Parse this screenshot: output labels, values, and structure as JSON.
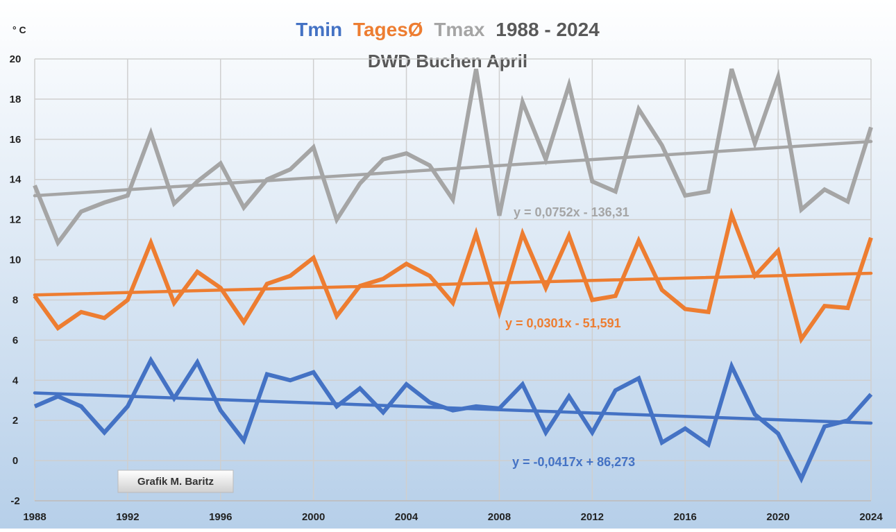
{
  "chart_data": {
    "type": "line",
    "title": "1988 - 2024",
    "subtitle": "DWD Buchen April",
    "y_label": "° C",
    "annotation": "Grafik M. Baritz",
    "x": [
      1988,
      1989,
      1990,
      1991,
      1992,
      1993,
      1994,
      1995,
      1996,
      1997,
      1998,
      1999,
      2000,
      2001,
      2002,
      2003,
      2004,
      2005,
      2006,
      2007,
      2008,
      2009,
      2010,
      2011,
      2012,
      2013,
      2014,
      2015,
      2016,
      2017,
      2018,
      2019,
      2020,
      2021,
      2022,
      2023,
      2024
    ],
    "xlim": [
      1988,
      2024
    ],
    "xticks": [
      1988,
      1992,
      1996,
      2000,
      2004,
      2008,
      2012,
      2016,
      2020,
      2024
    ],
    "ylim": [
      -2,
      20
    ],
    "yticks": [
      -2,
      0,
      2,
      4,
      6,
      8,
      10,
      12,
      14,
      16,
      18,
      20
    ],
    "grid": true,
    "series": [
      {
        "name": "Tmin",
        "color": "#4472c4",
        "values": [
          2.7,
          3.2,
          2.7,
          1.4,
          2.7,
          5.0,
          3.1,
          4.9,
          2.5,
          1.0,
          4.3,
          4.0,
          4.4,
          2.7,
          3.6,
          2.4,
          3.8,
          2.9,
          2.5,
          2.7,
          2.6,
          3.8,
          1.4,
          3.2,
          1.4,
          3.5,
          4.1,
          0.9,
          1.6,
          0.8,
          4.7,
          2.3,
          1.35,
          -0.9,
          1.7,
          2.0,
          3.3
        ],
        "trend": {
          "label": "y = -0,0417x + 86,273",
          "values": [
            3.37,
            1.87
          ]
        }
      },
      {
        "name": "TagesØ",
        "color": "#ed7d31",
        "values": [
          8.2,
          6.6,
          7.4,
          7.1,
          8.0,
          10.85,
          7.85,
          9.4,
          8.6,
          6.9,
          8.8,
          9.2,
          10.1,
          7.2,
          8.7,
          9.05,
          9.8,
          9.2,
          7.85,
          11.3,
          7.4,
          11.3,
          8.6,
          11.2,
          8.0,
          8.2,
          10.95,
          8.5,
          7.55,
          7.4,
          12.25,
          9.2,
          10.45,
          6.05,
          7.7,
          7.6,
          11.1
        ],
        "trend": {
          "label": "y = 0,0301x - 51,591",
          "values": [
            8.25,
            9.33
          ]
        }
      },
      {
        "name": "Tmax",
        "color": "#a5a5a5",
        "values": [
          13.7,
          10.85,
          12.4,
          12.85,
          13.2,
          16.3,
          12.8,
          13.9,
          14.8,
          12.6,
          14.0,
          14.5,
          15.6,
          12.0,
          13.8,
          15.0,
          15.3,
          14.7,
          13.0,
          19.5,
          12.2,
          17.85,
          15.0,
          18.7,
          13.9,
          13.4,
          17.5,
          15.7,
          13.2,
          13.4,
          19.5,
          15.8,
          19.1,
          12.5,
          13.5,
          12.9,
          16.6
        ],
        "trend": {
          "label": "y = 0,0752x - 136,31",
          "values": [
            13.19,
            15.89
          ]
        }
      }
    ]
  }
}
